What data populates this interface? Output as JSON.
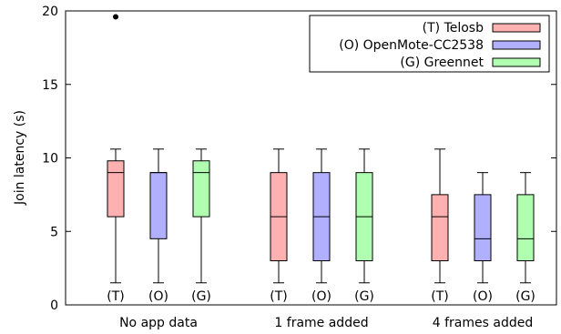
{
  "chart_data": {
    "type": "box",
    "ylabel": "Join latency (s)",
    "ylim": [
      0,
      20
    ],
    "yticks": [
      0,
      5,
      10,
      15,
      20
    ],
    "grid": false,
    "legend_position": "top-right",
    "groups": [
      {
        "label": "No app data",
        "boxes": [
          {
            "tag": "(T)",
            "series": "(T) Telosb",
            "whisker_low": 1.5,
            "q1": 6.0,
            "median": 9.0,
            "q3": 9.8,
            "whisker_high": 10.6,
            "outliers": [
              19.6
            ]
          },
          {
            "tag": "(O)",
            "series": "(O) OpenMote-CC2538",
            "whisker_low": 1.5,
            "q1": 4.5,
            "median": 9.0,
            "q3": 9.0,
            "whisker_high": 10.6,
            "outliers": []
          },
          {
            "tag": "(G)",
            "series": "(G) Greennet",
            "whisker_low": 1.5,
            "q1": 6.0,
            "median": 9.0,
            "q3": 9.8,
            "whisker_high": 10.6,
            "outliers": []
          }
        ]
      },
      {
        "label": "1 frame added",
        "boxes": [
          {
            "tag": "(T)",
            "series": "(T) Telosb",
            "whisker_low": 1.5,
            "q1": 3.0,
            "median": 6.0,
            "q3": 9.0,
            "whisker_high": 10.6,
            "outliers": []
          },
          {
            "tag": "(O)",
            "series": "(O) OpenMote-CC2538",
            "whisker_low": 1.5,
            "q1": 3.0,
            "median": 6.0,
            "q3": 9.0,
            "whisker_high": 10.6,
            "outliers": []
          },
          {
            "tag": "(G)",
            "series": "(G) Greennet",
            "whisker_low": 1.5,
            "q1": 3.0,
            "median": 6.0,
            "q3": 9.0,
            "whisker_high": 10.6,
            "outliers": []
          }
        ]
      },
      {
        "label": "4 frames added",
        "boxes": [
          {
            "tag": "(T)",
            "series": "(T) Telosb",
            "whisker_low": 1.5,
            "q1": 3.0,
            "median": 6.0,
            "q3": 7.5,
            "whisker_high": 10.6,
            "outliers": []
          },
          {
            "tag": "(O)",
            "series": "(O) OpenMote-CC2538",
            "whisker_low": 1.5,
            "q1": 3.0,
            "median": 4.5,
            "q3": 7.5,
            "whisker_high": 9.0,
            "outliers": []
          },
          {
            "tag": "(G)",
            "series": "(G) Greennet",
            "whisker_low": 1.5,
            "q1": 3.0,
            "median": 4.5,
            "q3": 7.5,
            "whisker_high": 9.0,
            "outliers": []
          }
        ]
      }
    ],
    "series": [
      {
        "name": "(T) Telosb",
        "color": "#ffb0b0"
      },
      {
        "name": "(O) OpenMote-CC2538",
        "color": "#b0b0ff"
      },
      {
        "name": "(G) Greennet",
        "color": "#b0ffb0"
      }
    ]
  }
}
